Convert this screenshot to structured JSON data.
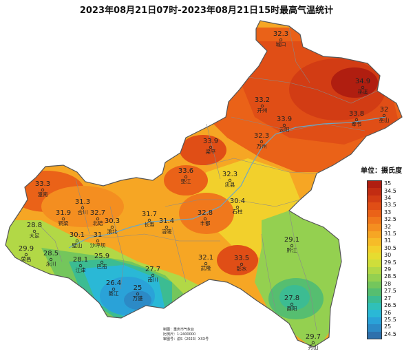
{
  "title": "2023年08月21日07时-2023年08月21日15时最高气温统计",
  "legend": {
    "title": "单位：摄氏度",
    "levels": [
      {
        "label": "35",
        "color": "#b01e10"
      },
      {
        "label": "34.5",
        "color": "#c22c12"
      },
      {
        "label": "34",
        "color": "#d23c14"
      },
      {
        "label": "33.5",
        "color": "#e04e16"
      },
      {
        "label": "33",
        "color": "#ea6218"
      },
      {
        "label": "32.5",
        "color": "#f0781c"
      },
      {
        "label": "32",
        "color": "#f48e20"
      },
      {
        "label": "31.5",
        "color": "#f6a624"
      },
      {
        "label": "31",
        "color": "#f6bc28"
      },
      {
        "label": "30.5",
        "color": "#f2d02c"
      },
      {
        "label": "30",
        "color": "#e6dc30"
      },
      {
        "label": "29.5",
        "color": "#cfde3a"
      },
      {
        "label": "29",
        "color": "#b2d846"
      },
      {
        "label": "28.5",
        "color": "#94d050"
      },
      {
        "label": "28",
        "color": "#74c65c"
      },
      {
        "label": "27.5",
        "color": "#56be70"
      },
      {
        "label": "27",
        "color": "#3cbc92"
      },
      {
        "label": "26.5",
        "color": "#30c0b8"
      },
      {
        "label": "26",
        "color": "#2ab8d6"
      },
      {
        "label": "25.5",
        "color": "#2aa2d8"
      },
      {
        "label": "25",
        "color": "#2c8ac6"
      },
      {
        "label": "24.5",
        "color": "#2e70ac"
      }
    ]
  },
  "stations": [
    {
      "name": "城口",
      "value": "32.3"
    },
    {
      "name": "巫溪",
      "value": "34.9"
    },
    {
      "name": "开州",
      "value": "33.2"
    },
    {
      "name": "云阳",
      "value": "33.9"
    },
    {
      "name": "奉节",
      "value": "33.8"
    },
    {
      "name": "巫山",
      "value": "32"
    },
    {
      "name": "万州",
      "value": "32.3"
    },
    {
      "name": "梁平",
      "value": "33.9"
    },
    {
      "name": "垫江",
      "value": "33.6"
    },
    {
      "name": "忠县",
      "value": "32.3"
    },
    {
      "name": "潼南",
      "value": "33.3"
    },
    {
      "name": "合川",
      "value": "31.3"
    },
    {
      "name": "铜梁",
      "value": "31.9"
    },
    {
      "name": "北碚",
      "value": "32.7"
    },
    {
      "name": "渝北",
      "value": "30.3"
    },
    {
      "name": "长寿",
      "value": "31.7"
    },
    {
      "name": "涪陵",
      "value": "31.4"
    },
    {
      "name": "丰都",
      "value": "32.8"
    },
    {
      "name": "石柱",
      "value": "30.4"
    },
    {
      "name": "大足",
      "value": "28.8"
    },
    {
      "name": "璧山",
      "value": "30.1"
    },
    {
      "name": "沙坪坝",
      "value": "31"
    },
    {
      "name": "荣昌",
      "value": "29.9"
    },
    {
      "name": "永川",
      "value": "28.5"
    },
    {
      "name": "江津",
      "value": "28.1"
    },
    {
      "name": "巴南",
      "value": "25.9"
    },
    {
      "name": "南川",
      "value": "27.7"
    },
    {
      "name": "綦江",
      "value": "26.4"
    },
    {
      "name": "万盛",
      "value": "25"
    },
    {
      "name": "武隆",
      "value": "32.1"
    },
    {
      "name": "彭水",
      "value": "33.5"
    },
    {
      "name": "黔江",
      "value": "29.1"
    },
    {
      "name": "酉阳",
      "value": "27.8"
    },
    {
      "name": "秀山",
      "value": "29.7"
    }
  ],
  "info": [
    "制图：重庆市气象台",
    "比例尺：1:2400000",
    "审图号：渝S（2023）XXX号"
  ]
}
